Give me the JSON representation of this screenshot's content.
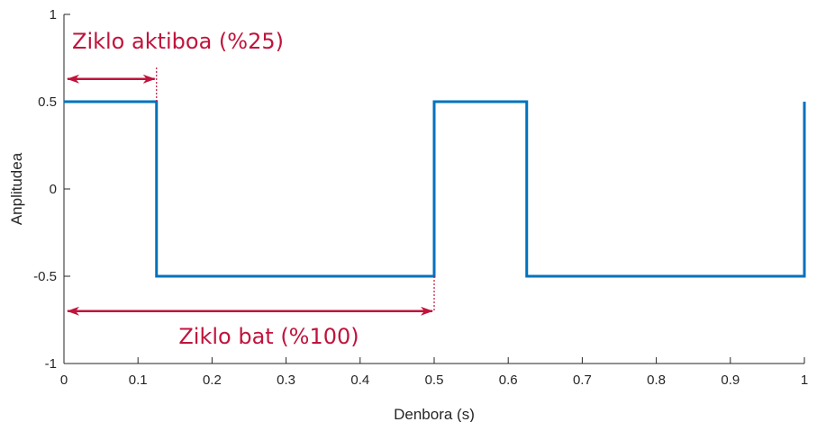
{
  "chart_data": {
    "type": "line",
    "title": "",
    "xlabel": "Denbora (s)",
    "ylabel": "Anplitudea",
    "xlim": [
      0,
      1
    ],
    "ylim": [
      -1,
      1
    ],
    "x_ticks": [
      0,
      0.1,
      0.2,
      0.3,
      0.4,
      0.5,
      0.6,
      0.7,
      0.8,
      0.9,
      1
    ],
    "x_tick_labels": [
      "0",
      "0.1",
      "0.2",
      "0.3",
      "0.4",
      "0.5",
      "0.6",
      "0.7",
      "0.8",
      "0.9",
      "1"
    ],
    "y_ticks": [
      -1,
      -0.5,
      0,
      0.5,
      1
    ],
    "y_tick_labels": [
      "-1",
      "-0.5",
      "0",
      "0.5",
      "1"
    ],
    "grid": false,
    "series": [
      {
        "color": "#0072bd",
        "x": [
          0,
          0.125,
          0.125,
          0.5,
          0.5,
          0.625,
          0.625,
          1,
          1
        ],
        "y": [
          0.5,
          0.5,
          -0.5,
          -0.5,
          0.5,
          0.5,
          -0.5,
          -0.5,
          0.5
        ]
      }
    ],
    "annotations": [
      {
        "text": "Ziklo aktiboa (%25)",
        "x_start": 0,
        "x_end": 0.125,
        "y": 0.63,
        "marker_x": 0.125,
        "marker_y_from": 0.5,
        "marker_y_to": 0.7,
        "label_position": "above"
      },
      {
        "text": "Ziklo bat (%100)",
        "x_start": 0,
        "x_end": 0.5,
        "y": -0.7,
        "marker_x": 0.5,
        "marker_y_from": -0.5,
        "marker_y_to": -0.7,
        "label_position": "below"
      }
    ],
    "annotation_color": "#c0143c"
  }
}
